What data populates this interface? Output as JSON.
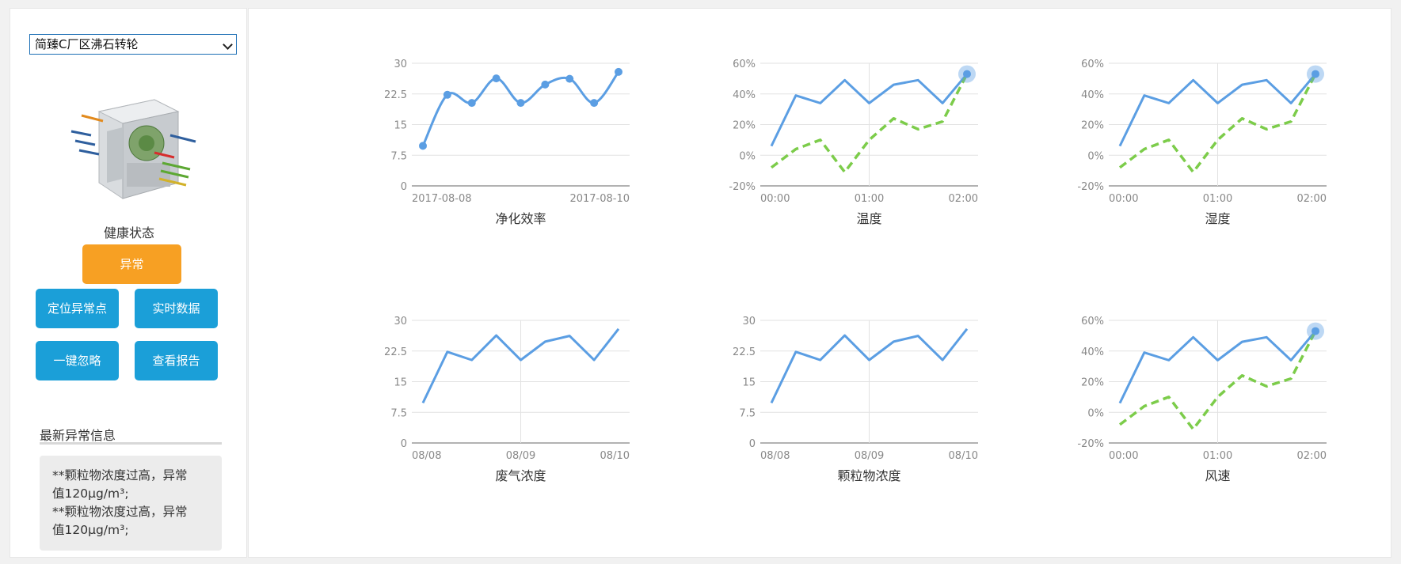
{
  "sidebar": {
    "device_select": {
      "value": "简臻C厂区沸石转轮"
    },
    "health": {
      "title": "健康状态",
      "status": "异常",
      "status_color": "#f7a023"
    },
    "actions": {
      "locate": "定位异常点",
      "realtime": "实时数据",
      "ignore": "一键忽略",
      "report": "查看报告"
    },
    "alerts": {
      "title": "最新异常信息",
      "lines": [
        "**颗粒物浓度过高，异常",
        "值120μg/m³;",
        "**颗粒物浓度过高，异常",
        "值120μg/m³;"
      ]
    }
  },
  "colors": {
    "blue": "#5b9ee3",
    "green": "#7ccc4a",
    "grid": "#e2e2e2",
    "axis": "#999999"
  },
  "chart_data": [
    {
      "type": "line",
      "title": "净化效率",
      "smooth": true,
      "x_ticks": [
        "2017-08-08",
        "2017-08-10"
      ],
      "y_ticks": [
        "30",
        "22.5",
        "15",
        "7.5",
        "0"
      ],
      "ylim": [
        0,
        30
      ],
      "series": [
        {
          "values": [
            9.8,
            22.3,
            20.3,
            26.3,
            20.3,
            24.8,
            26.2,
            20.3,
            27.9
          ],
          "color": "#5b9ee3",
          "markers": true
        }
      ]
    },
    {
      "type": "line",
      "title": "温度",
      "x_ticks": [
        "00:00",
        "01:00",
        "02:00"
      ],
      "y_ticks": [
        "60%",
        "40%",
        "20%",
        "0%",
        "-20%"
      ],
      "ylim": [
        -20,
        60
      ],
      "vline_at_center": true,
      "series": [
        {
          "values": [
            6,
            39,
            34,
            49,
            34,
            46,
            49,
            34,
            53
          ],
          "color": "#5b9ee3"
        },
        {
          "values": [
            -8,
            4,
            10,
            -11,
            10,
            24,
            17,
            22,
            53
          ],
          "color": "#7ccc4a",
          "dashed": true
        }
      ],
      "highlight_last": true
    },
    {
      "type": "line",
      "title": "湿度",
      "x_ticks": [
        "00:00",
        "01:00",
        "02:00"
      ],
      "y_ticks": [
        "60%",
        "40%",
        "20%",
        "0%",
        "-20%"
      ],
      "ylim": [
        -20,
        60
      ],
      "vline_at_center": true,
      "series": [
        {
          "values": [
            6,
            39,
            34,
            49,
            34,
            46,
            49,
            34,
            53
          ],
          "color": "#5b9ee3"
        },
        {
          "values": [
            -8,
            4,
            10,
            -11,
            10,
            24,
            17,
            22,
            53
          ],
          "color": "#7ccc4a",
          "dashed": true
        }
      ],
      "highlight_last": true
    },
    {
      "type": "line",
      "title": "废气浓度",
      "x_ticks": [
        "08/08",
        "08/09",
        "08/10"
      ],
      "y_ticks": [
        "30",
        "22.5",
        "15",
        "7.5",
        "0"
      ],
      "ylim": [
        0,
        30
      ],
      "vline_at_center": true,
      "series": [
        {
          "values": [
            9.8,
            22.3,
            20.3,
            26.3,
            20.3,
            24.8,
            26.2,
            20.3,
            27.9
          ],
          "color": "#5b9ee3"
        }
      ]
    },
    {
      "type": "line",
      "title": "颗粒物浓度",
      "x_ticks": [
        "08/08",
        "08/09",
        "08/10"
      ],
      "y_ticks": [
        "30",
        "22.5",
        "15",
        "7.5",
        "0"
      ],
      "ylim": [
        0,
        30
      ],
      "vline_at_center": true,
      "series": [
        {
          "values": [
            9.8,
            22.3,
            20.3,
            26.3,
            20.3,
            24.8,
            26.2,
            20.3,
            27.9
          ],
          "color": "#5b9ee3"
        }
      ]
    },
    {
      "type": "line",
      "title": "风速",
      "x_ticks": [
        "00:00",
        "01:00",
        "02:00"
      ],
      "y_ticks": [
        "60%",
        "40%",
        "20%",
        "0%",
        "-20%"
      ],
      "ylim": [
        -20,
        60
      ],
      "vline_at_center": true,
      "series": [
        {
          "values": [
            6,
            39,
            34,
            49,
            34,
            46,
            49,
            34,
            53
          ],
          "color": "#5b9ee3"
        },
        {
          "values": [
            -8,
            4,
            10,
            -11,
            10,
            24,
            17,
            22,
            53
          ],
          "color": "#7ccc4a",
          "dashed": true
        }
      ],
      "highlight_last": true
    }
  ]
}
